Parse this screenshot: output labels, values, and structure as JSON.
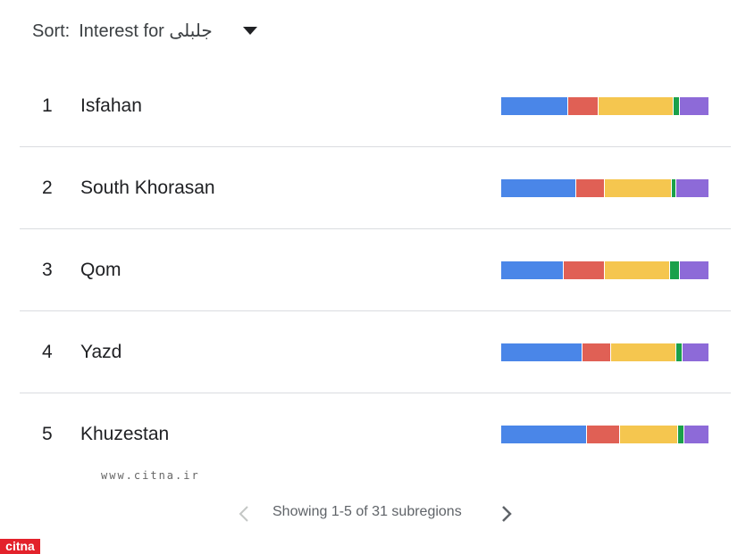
{
  "sort": {
    "label": "Sort:",
    "value": "Interest for جلبلی"
  },
  "colors": [
    "#4a86e8",
    "#e06055",
    "#f5c64f",
    "#1aa04a",
    "#8d6ad8"
  ],
  "rows": [
    {
      "rank": 1,
      "name": "Isfahan",
      "shares": [
        32,
        15,
        36,
        3,
        14
      ]
    },
    {
      "rank": 2,
      "name": "South Khorasan",
      "shares": [
        36,
        14,
        32,
        2,
        16
      ]
    },
    {
      "rank": 3,
      "name": "Qom",
      "shares": [
        30,
        20,
        31,
        5,
        14
      ]
    },
    {
      "rank": 4,
      "name": "Yazd",
      "shares": [
        39,
        14,
        31,
        3,
        13
      ]
    },
    {
      "rank": 5,
      "name": "Khuzestan",
      "shares": [
        41,
        16,
        28,
        3,
        12
      ]
    }
  ],
  "watermark": "www.citna.ir",
  "pagination": "Showing 1-5 of 31 subregions",
  "logo": "citna"
}
